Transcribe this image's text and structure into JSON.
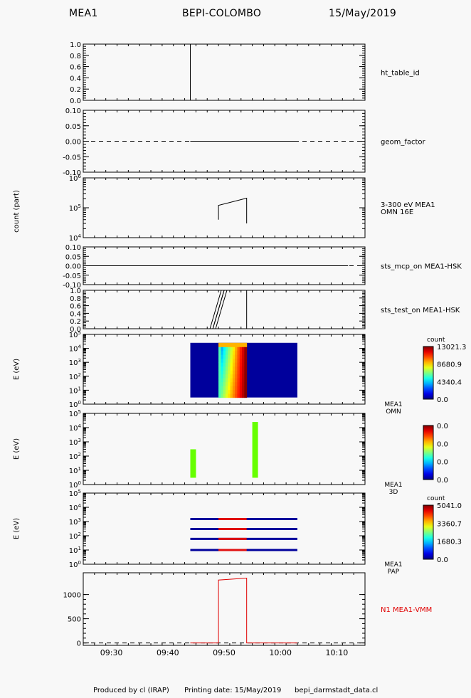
{
  "header": {
    "instrument": "MEA1",
    "mission": "BEPI-COLOMBO",
    "date": "15/May/2019"
  },
  "footer": {
    "produced": "Produced by cl (IRAP)",
    "printing": "Printing date: 15/May/2019",
    "file": "bepi_darmstadt_data.cl"
  },
  "left_labels": {
    "count": "count (part)",
    "energy": "E (eV)"
  },
  "chart_data": [
    {
      "type": "line",
      "name": "ht_table_id",
      "title": "ht_table_id",
      "ylim": [
        0,
        1.0
      ],
      "yticks": [
        "0.0",
        "0.2",
        "0.4",
        "0.6",
        "0.8",
        "1.0"
      ],
      "xlim": [
        "09:25",
        "10:15"
      ],
      "series": [
        {
          "x": [
            "09:44",
            "09:44",
            "10:03"
          ],
          "values": [
            0,
            1,
            1
          ]
        }
      ]
    },
    {
      "type": "line",
      "name": "geom_factor",
      "title": "geom_factor",
      "ylim": [
        -0.1,
        0.1
      ],
      "yticks": [
        "-0.10",
        "-0.05",
        "0.00",
        "0.05",
        "0.10"
      ],
      "series": [
        {
          "x": [
            "09:44",
            "10:03"
          ],
          "values": [
            0,
            0
          ]
        }
      ]
    },
    {
      "type": "line",
      "name": "3-300 eV",
      "title": [
        "3-300 eV MEA1",
        "OMN 16E"
      ],
      "yscale": "log",
      "ylim": [
        10000,
        1000000
      ],
      "yticks": [
        "10^4",
        "10^5",
        "10^6"
      ],
      "series": [
        {
          "x": [
            "09:49",
            "09:49",
            "09:54",
            "09:54"
          ],
          "values": [
            40000,
            120000,
            210000,
            30000
          ]
        }
      ]
    },
    {
      "type": "line",
      "name": "sts_mcp_on",
      "title": "sts_mcp_on MEA1-HSK",
      "ylim": [
        -0.1,
        0.1
      ],
      "yticks": [
        "-0.10",
        "-0.05",
        "0.00",
        "0.05",
        "0.10"
      ],
      "series": [
        {
          "x": [
            "09:26",
            "10:12"
          ],
          "values": [
            0,
            0
          ]
        }
      ]
    },
    {
      "type": "line",
      "name": "sts_test_on",
      "title": "sts_test_on MEA1-HSK",
      "ylim": [
        0,
        1.0
      ],
      "yticks": [
        "0.0",
        "0.2",
        "0.4",
        "0.6",
        "0.8",
        "1.0"
      ],
      "series": [
        {
          "x": [
            "09:26",
            "09:48",
            "09:50",
            "09:54",
            "09:54",
            "10:12"
          ],
          "values": [
            0,
            0,
            1,
            1,
            0,
            0
          ]
        }
      ]
    },
    {
      "type": "heatmap",
      "name": "MEA1 OMN",
      "title": [
        "MEA1",
        "OMN"
      ],
      "yscale": "log",
      "ylim": [
        1,
        100000
      ],
      "yticks": [
        "10^0",
        "10^1",
        "10^2",
        "10^3",
        "10^4",
        "10^5"
      ],
      "colorbar": {
        "title": "count",
        "ticks": [
          "13021.3",
          "8680.9",
          "4340.4",
          "0.0"
        ]
      },
      "blocks": [
        {
          "from": "09:44",
          "to": "10:03",
          "emin": 3,
          "emax": 25000,
          "level": "low"
        },
        {
          "from": "09:49",
          "to": "09:54",
          "emin": 3,
          "emax": 25000,
          "level": "high"
        }
      ]
    },
    {
      "type": "heatmap",
      "name": "MEA1 3D",
      "title": [
        "MEA1",
        "3D"
      ],
      "yscale": "log",
      "ylim": [
        1,
        100000
      ],
      "yticks": [
        "10^0",
        "10^1",
        "10^2",
        "10^3",
        "10^4",
        "10^5"
      ],
      "colorbar": {
        "title": "",
        "ticks": [
          "0.0",
          "0.0",
          "0.0",
          "0.0"
        ]
      },
      "blocks": [
        {
          "from": "09:44",
          "to": "09:45",
          "emin": 3,
          "emax": 300
        },
        {
          "from": "09:55",
          "to": "09:56",
          "emin": 3,
          "emax": 25000
        }
      ]
    },
    {
      "type": "heatmap",
      "name": "MEA1 PAP",
      "title": [
        "MEA1",
        "PAP"
      ],
      "yscale": "log",
      "ylim": [
        1,
        100000
      ],
      "yticks": [
        "10^0",
        "10^1",
        "10^2",
        "10^3",
        "10^4",
        "10^5"
      ],
      "colorbar": {
        "title": "count",
        "ticks": [
          "5041.0",
          "3360.7",
          "1680.3",
          "0.0"
        ]
      },
      "lines": [
        {
          "from": "09:44",
          "to": "10:03",
          "e": 1500
        },
        {
          "from": "09:44",
          "to": "10:03",
          "e": 300
        },
        {
          "from": "09:44",
          "to": "10:03",
          "e": 60
        },
        {
          "from": "09:44",
          "to": "10:03",
          "e": 10
        }
      ]
    },
    {
      "type": "line",
      "name": "N1 MEA1-VMM",
      "title": "N1 MEA1-VMM",
      "ylim": [
        -50,
        1450
      ],
      "yticks": [
        "0",
        "500",
        "1000"
      ],
      "series": [
        {
          "x": [
            "09:44",
            "09:49",
            "09:49",
            "09:54",
            "09:54",
            "10:03"
          ],
          "values": [
            0,
            0,
            1300,
            1340,
            0,
            0
          ]
        }
      ]
    }
  ],
  "time_axis": {
    "ticks": [
      "09:30",
      "09:40",
      "09:50",
      "10:00",
      "10:10"
    ]
  }
}
